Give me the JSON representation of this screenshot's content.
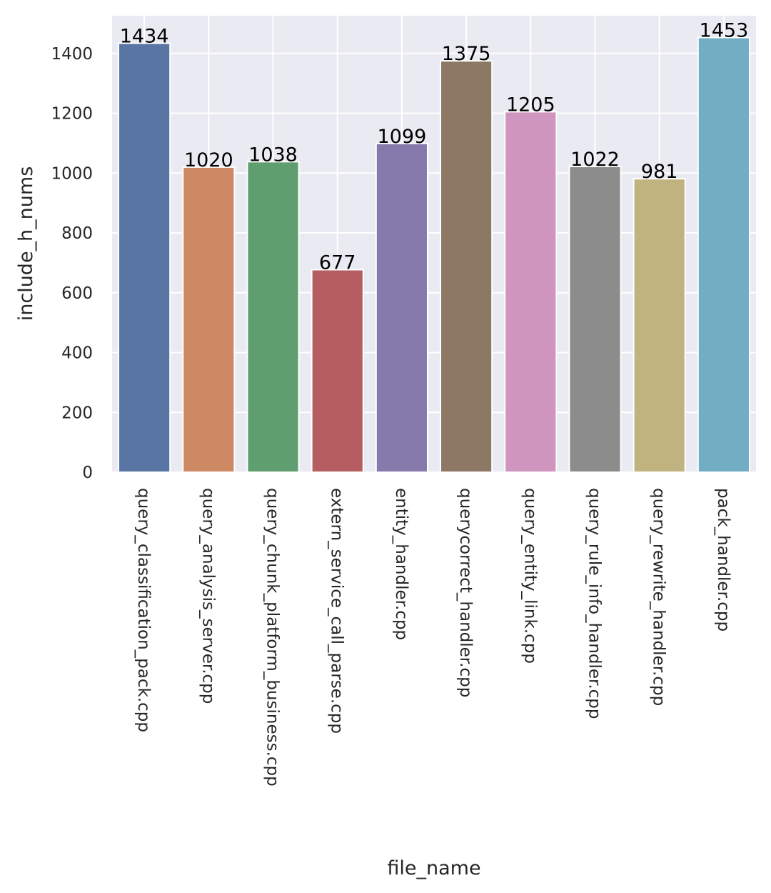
{
  "chart_data": {
    "type": "bar",
    "title": "",
    "xlabel": "file_name",
    "ylabel": "include_h_nums",
    "categories": [
      "query_classification_pack.cpp",
      "query_analysis_server.cpp",
      "query_chunk_platform_business.cpp",
      "extern_service_call_parse.cpp",
      "entity_handler.cpp",
      "querycorrect_handler.cpp",
      "query_entity_link.cpp",
      "query_rule_info_handler.cpp",
      "query_rewrite_handler.cpp",
      "pack_handler.cpp"
    ],
    "values": [
      1434,
      1020,
      1038,
      677,
      1099,
      1375,
      1205,
      1022,
      981,
      1453
    ],
    "data_labels": [
      "1434",
      "1020",
      "1038",
      "677",
      "1099",
      "1375",
      "1205",
      "1022",
      "981",
      "1453"
    ],
    "ylim": [
      0,
      1526
    ],
    "yticks": [
      0,
      200,
      400,
      600,
      800,
      1000,
      1200,
      1400
    ],
    "ytick_labels": [
      "0",
      "200",
      "400",
      "600",
      "800",
      "1000",
      "1200",
      "1400"
    ],
    "grid": true,
    "legend": "none",
    "colors": [
      "#5975a4",
      "#cc8963",
      "#5f9e6e",
      "#b55d60",
      "#857aab",
      "#8d7866",
      "#d095bf",
      "#8c8c8c",
      "#c1b37f",
      "#72aec3"
    ],
    "style": {
      "plot_background": "#eaeaf2",
      "grid_color": "#ffffff",
      "bar_edge": "#ffffff"
    }
  }
}
